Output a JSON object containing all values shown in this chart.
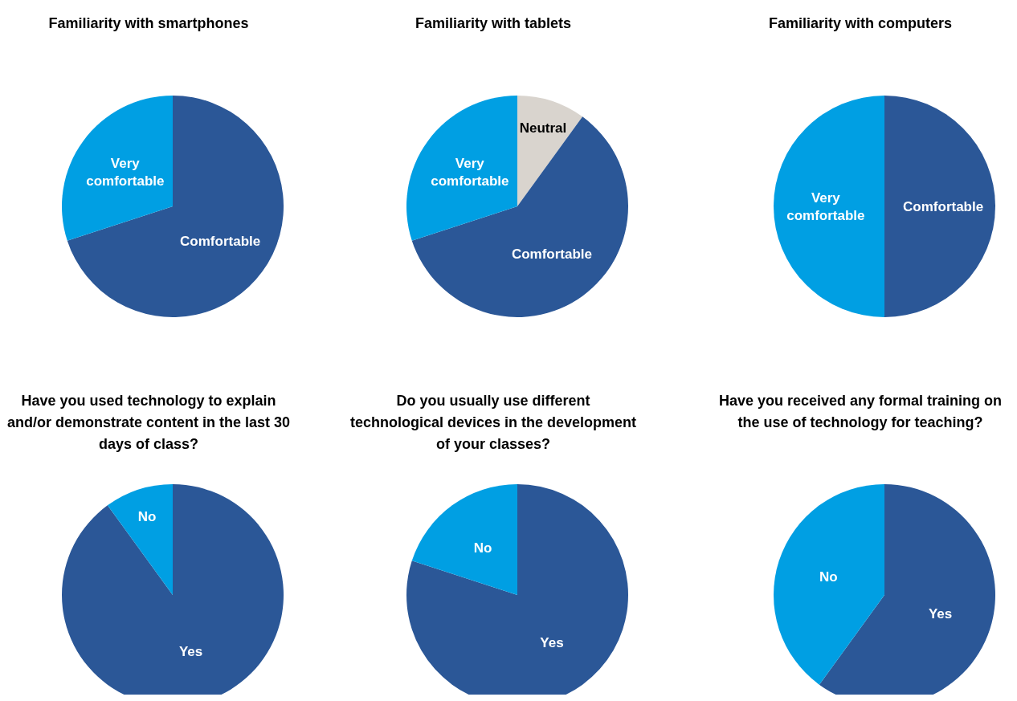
{
  "chart_data": [
    {
      "type": "pie",
      "title": "Familiarity with smartphones",
      "categories": [
        "Comfortable",
        "Very comfortable"
      ],
      "values": [
        70,
        30
      ],
      "colors": [
        "#2b5797",
        "#009fe3"
      ]
    },
    {
      "type": "pie",
      "title": "Familiarity with tablets",
      "categories": [
        "Neutral",
        "Comfortable",
        "Very comfortable"
      ],
      "values": [
        10,
        60,
        30
      ],
      "colors": [
        "#d9d4ce",
        "#2b5797",
        "#009fe3"
      ]
    },
    {
      "type": "pie",
      "title": "Familiarity with computers",
      "categories": [
        "Comfortable",
        "Very comfortable"
      ],
      "values": [
        50,
        50
      ],
      "colors": [
        "#2b5797",
        "#009fe3"
      ]
    },
    {
      "type": "pie",
      "title": "Have you used technology to explain and/or demonstrate content in the last 30 days of class?",
      "categories": [
        "Yes",
        "No"
      ],
      "values": [
        90,
        10
      ],
      "colors": [
        "#2b5797",
        "#009fe3"
      ]
    },
    {
      "type": "pie",
      "title": "Do you usually use different technological devices in the development of your classes?",
      "categories": [
        "Yes",
        "No"
      ],
      "values": [
        80,
        20
      ],
      "colors": [
        "#2b5797",
        "#009fe3"
      ]
    },
    {
      "type": "pie",
      "title": "Have you received any formal training on the use of technology for teaching?",
      "categories": [
        "Yes",
        "No"
      ],
      "values": [
        60,
        40
      ],
      "colors": [
        "#2b5797",
        "#009fe3"
      ]
    }
  ]
}
